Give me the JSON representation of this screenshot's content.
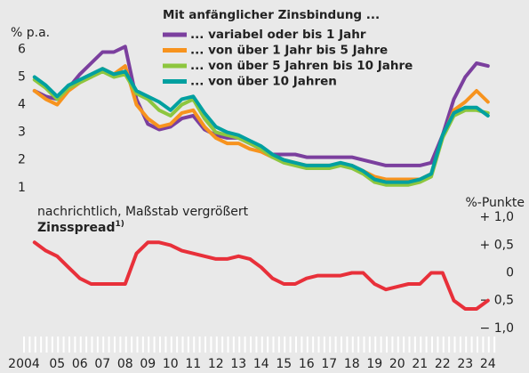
{
  "chart_data": [
    {
      "type": "line",
      "legend_title": "Mit anfänglicher Zinsbindung ...",
      "y_label": "% p.a.",
      "x": [
        2004.5,
        2005,
        2005.5,
        2006,
        2006.5,
        2007,
        2007.5,
        2008,
        2008.5,
        2009,
        2009.5,
        2010,
        2010.5,
        2011,
        2011.5,
        2012,
        2012.5,
        2013,
        2013.5,
        2014,
        2014.5,
        2015,
        2015.5,
        2016,
        2016.5,
        2017,
        2017.5,
        2018,
        2018.5,
        2019,
        2019.5,
        2020,
        2020.5,
        2021,
        2021.5,
        2022,
        2022.5,
        2023,
        2023.5,
        2024,
        2024.5
      ],
      "series": [
        {
          "name": "... variabel oder bis 1 Jahr",
          "color": "#7b3f9e",
          "values": [
            4.5,
            4.3,
            4.2,
            4.6,
            5.1,
            5.5,
            5.9,
            5.9,
            6.1,
            4.2,
            3.3,
            3.1,
            3.2,
            3.5,
            3.6,
            3.1,
            2.9,
            2.8,
            2.8,
            2.6,
            2.4,
            2.2,
            2.2,
            2.2,
            2.1,
            2.1,
            2.1,
            2.1,
            2.1,
            2.0,
            1.9,
            1.8,
            1.8,
            1.8,
            1.8,
            1.9,
            2.9,
            4.2,
            5.0,
            5.5,
            5.4
          ]
        },
        {
          "name": "... von über 1 Jahr bis 5 Jahre",
          "color": "#f7931e",
          "values": [
            4.5,
            4.2,
            4.0,
            4.5,
            4.8,
            5.0,
            5.3,
            5.1,
            5.4,
            4.0,
            3.5,
            3.2,
            3.3,
            3.7,
            3.8,
            3.2,
            2.8,
            2.6,
            2.6,
            2.4,
            2.3,
            2.1,
            2.0,
            1.9,
            1.8,
            1.8,
            1.8,
            1.8,
            1.8,
            1.6,
            1.4,
            1.3,
            1.3,
            1.3,
            1.3,
            1.5,
            2.8,
            3.8,
            4.1,
            4.5,
            4.1
          ]
        },
        {
          "name": "... von über 5 Jahren bis 10 Jahre",
          "color": "#8dc63f",
          "values": [
            4.9,
            4.6,
            4.2,
            4.6,
            4.8,
            5.0,
            5.2,
            5.0,
            5.1,
            4.4,
            4.2,
            3.8,
            3.6,
            4.0,
            4.2,
            3.5,
            3.0,
            2.9,
            2.8,
            2.6,
            2.4,
            2.1,
            1.9,
            1.8,
            1.7,
            1.7,
            1.7,
            1.8,
            1.7,
            1.5,
            1.2,
            1.1,
            1.1,
            1.1,
            1.2,
            1.4,
            2.8,
            3.6,
            3.8,
            3.8,
            3.7
          ]
        },
        {
          "name": "... von über 10 Jahren",
          "color": "#00a0a0",
          "values": [
            5.0,
            4.7,
            4.3,
            4.7,
            4.9,
            5.1,
            5.3,
            5.1,
            5.2,
            4.5,
            4.3,
            4.1,
            3.8,
            4.2,
            4.3,
            3.7,
            3.2,
            3.0,
            2.9,
            2.7,
            2.5,
            2.2,
            2.0,
            1.9,
            1.8,
            1.8,
            1.8,
            1.9,
            1.8,
            1.6,
            1.3,
            1.2,
            1.2,
            1.2,
            1.3,
            1.5,
            2.9,
            3.7,
            3.9,
            3.9,
            3.6
          ]
        }
      ],
      "xlim": [
        2004,
        2025
      ],
      "ylim": [
        0.8,
        6.4
      ],
      "yticks": [
        1,
        2,
        3,
        4,
        5,
        6
      ]
    },
    {
      "type": "line",
      "note": "nachrichtlich, Maßstab vergrößert",
      "y_label": "%-Punkte",
      "footnote_marker": "1)",
      "x": [
        2004.5,
        2005,
        2005.5,
        2006,
        2006.5,
        2007,
        2007.5,
        2008,
        2008.5,
        2009,
        2009.5,
        2010,
        2010.5,
        2011,
        2011.5,
        2012,
        2012.5,
        2013,
        2013.5,
        2014,
        2014.5,
        2015,
        2015.5,
        2016,
        2016.5,
        2017,
        2017.5,
        2018,
        2018.5,
        2019,
        2019.5,
        2020,
        2020.5,
        2021,
        2021.5,
        2022,
        2022.5,
        2023,
        2023.5,
        2024,
        2024.5
      ],
      "series": [
        {
          "name": "Zinsspread",
          "color": "#e8303a",
          "values": [
            0.55,
            0.4,
            0.3,
            0.1,
            -0.1,
            -0.2,
            -0.2,
            -0.2,
            -0.2,
            0.35,
            0.55,
            0.55,
            0.5,
            0.4,
            0.35,
            0.3,
            0.25,
            0.25,
            0.3,
            0.25,
            0.1,
            -0.1,
            -0.2,
            -0.2,
            -0.1,
            -0.05,
            -0.05,
            -0.05,
            0,
            0,
            -0.2,
            -0.3,
            -0.25,
            -0.2,
            -0.2,
            0,
            0,
            -0.5,
            -0.65,
            -0.65,
            -0.5
          ]
        }
      ],
      "xlim": [
        2004,
        2025
      ],
      "ylim": [
        -1.1,
        1.1
      ],
      "yticks": [
        {
          "value": 1,
          "label": "+ 1,0"
        },
        {
          "value": 0.5,
          "label": "+ 0,5"
        },
        0,
        {
          "value": -0.5,
          "label": "− 0,5"
        },
        {
          "value": -1,
          "label": "− 1,0"
        }
      ],
      "xticks": [
        {
          "value": 2004,
          "label": "2004"
        },
        {
          "value": 2005,
          "label": "05"
        },
        {
          "value": 2006,
          "label": "06"
        },
        {
          "value": 2007,
          "label": "07"
        },
        {
          "value": 2008,
          "label": "08"
        },
        {
          "value": 2009,
          "label": "09"
        },
        {
          "value": 2010,
          "label": "10"
        },
        {
          "value": 2011,
          "label": "11"
        },
        {
          "value": 2012,
          "label": "12"
        },
        {
          "value": 2013,
          "label": "13"
        },
        {
          "value": 2014,
          "label": "14"
        },
        {
          "value": 2015,
          "label": "15"
        },
        {
          "value": 2016,
          "label": "16"
        },
        {
          "value": 2017,
          "label": "17"
        },
        {
          "value": 2018,
          "label": "18"
        },
        {
          "value": 2019,
          "label": "19"
        },
        {
          "value": 2020,
          "label": "20"
        },
        {
          "value": 2021,
          "label": "21"
        },
        {
          "value": 2022,
          "label": "22"
        },
        {
          "value": 2023,
          "label": "23"
        },
        {
          "value": 2024,
          "label": "24"
        }
      ]
    }
  ]
}
